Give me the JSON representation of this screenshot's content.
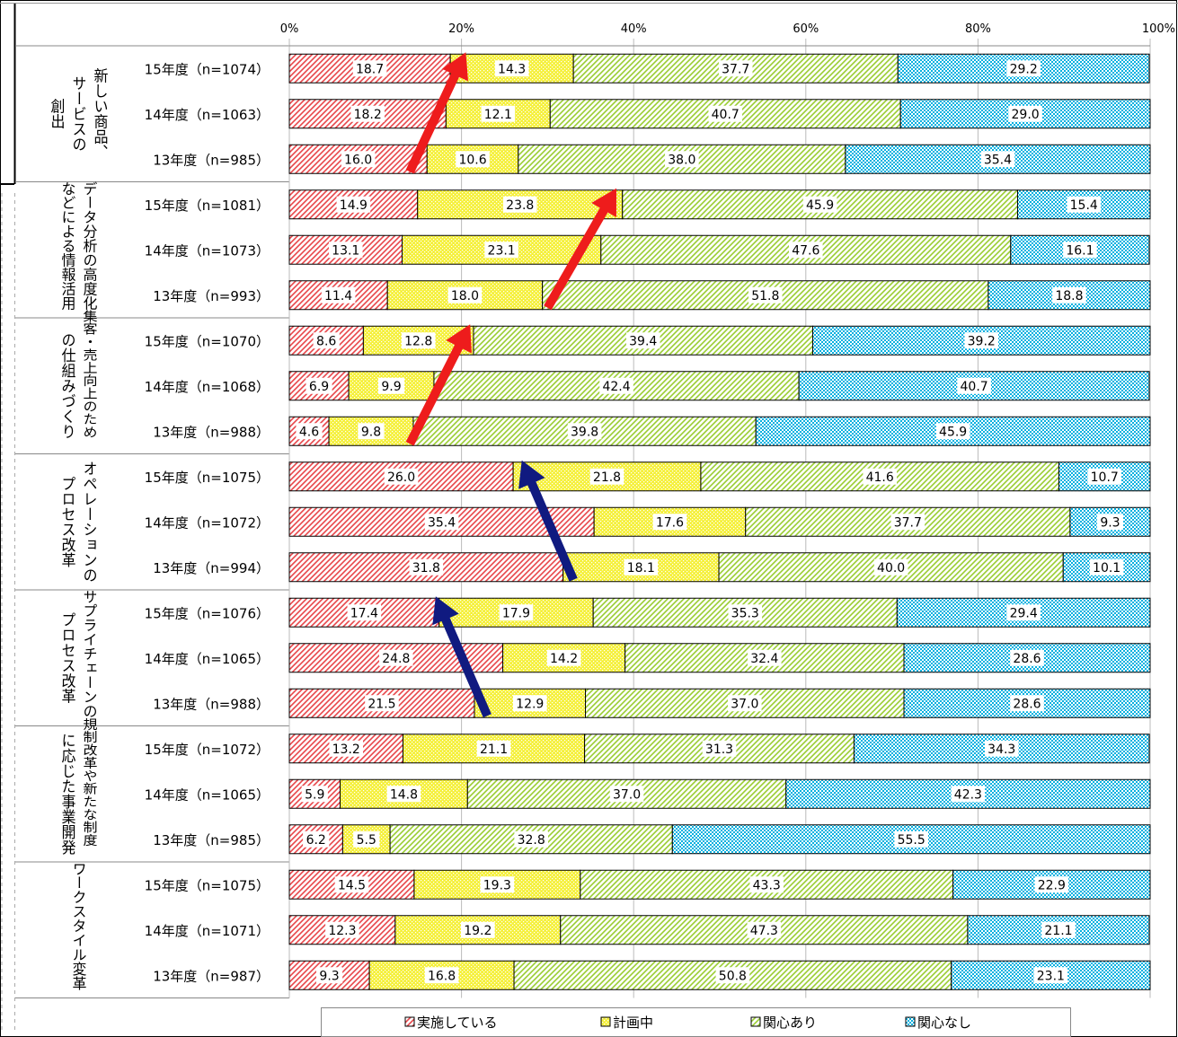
{
  "chart_data": {
    "type": "bar",
    "orientation": "horizontal-stacked-100",
    "x_ticks": [
      "0%",
      "20%",
      "40%",
      "60%",
      "80%",
      "100%"
    ],
    "xlim": [
      0,
      100
    ],
    "grid": true,
    "legend_position": "bottom",
    "series": [
      {
        "name": "実施している",
        "color": "#e8464a",
        "pattern": "diagonal"
      },
      {
        "name": "計画中",
        "color": "#f5f03c",
        "pattern": "dots"
      },
      {
        "name": "関心あり",
        "color": "#9acd32",
        "pattern": "diagonal"
      },
      {
        "name": "関心なし",
        "color": "#00b0e0",
        "pattern": "checker"
      }
    ],
    "groups": [
      {
        "label": [
          "新しい商品、",
          "サービスの",
          "創出"
        ],
        "rows": [
          {
            "label": "15年度（n=1074）",
            "values": [
              18.7,
              14.3,
              37.7,
              29.2
            ]
          },
          {
            "label": "14年度（n=1063）",
            "values": [
              18.2,
              12.1,
              40.7,
              29.0
            ]
          },
          {
            "label": "13年度（n=985）",
            "values": [
              16.0,
              10.6,
              38.0,
              35.4
            ]
          }
        ]
      },
      {
        "label": [
          "データ分析の高度化",
          "などによる情報活用"
        ],
        "rows": [
          {
            "label": "15年度（n=1081）",
            "values": [
              14.9,
              23.8,
              45.9,
              15.4
            ]
          },
          {
            "label": "14年度（n=1073）",
            "values": [
              13.1,
              23.1,
              47.6,
              16.1
            ]
          },
          {
            "label": "13年度（n=993）",
            "values": [
              11.4,
              18.0,
              51.8,
              18.8
            ]
          }
        ]
      },
      {
        "label": [
          "集客・売上向上のため",
          "の仕組みづくり"
        ],
        "rows": [
          {
            "label": "15年度（n=1070）",
            "values": [
              8.6,
              12.8,
              39.4,
              39.2
            ]
          },
          {
            "label": "14年度（n=1068）",
            "values": [
              6.9,
              9.9,
              42.4,
              40.7
            ]
          },
          {
            "label": "13年度（n=988）",
            "values": [
              4.6,
              9.8,
              39.8,
              45.9
            ]
          }
        ]
      },
      {
        "label": [
          "オペレーションの",
          "プロセス改革"
        ],
        "rows": [
          {
            "label": "15年度（n=1075）",
            "values": [
              26.0,
              21.8,
              41.6,
              10.7
            ]
          },
          {
            "label": "14年度（n=1072）",
            "values": [
              35.4,
              17.6,
              37.7,
              9.3
            ]
          },
          {
            "label": "13年度（n=994）",
            "values": [
              31.8,
              18.1,
              40.0,
              10.1
            ]
          }
        ]
      },
      {
        "label": [
          "サプライチェーンの",
          "プロセス改革"
        ],
        "rows": [
          {
            "label": "15年度（n=1076）",
            "values": [
              17.4,
              17.9,
              35.3,
              29.4
            ]
          },
          {
            "label": "14年度（n=1065）",
            "values": [
              24.8,
              14.2,
              32.4,
              28.6
            ]
          },
          {
            "label": "13年度（n=988）",
            "values": [
              21.5,
              12.9,
              37.0,
              28.6
            ]
          }
        ]
      },
      {
        "label": [
          "規制改革や新たな制度",
          "に応じた事業開発"
        ],
        "rows": [
          {
            "label": "15年度（n=1072）",
            "values": [
              13.2,
              21.1,
              31.3,
              34.3
            ]
          },
          {
            "label": "14年度（n=1065）",
            "values": [
              5.9,
              14.8,
              37.0,
              42.3
            ]
          },
          {
            "label": "13年度（n=985）",
            "values": [
              6.2,
              5.5,
              32.8,
              55.5
            ]
          }
        ]
      },
      {
        "label": [
          "ワークスタイル変革"
        ],
        "rows": [
          {
            "label": "15年度（n=1075）",
            "values": [
              14.5,
              19.3,
              43.3,
              22.9
            ]
          },
          {
            "label": "14年度（n=1071）",
            "values": [
              12.3,
              19.2,
              47.3,
              21.1
            ]
          },
          {
            "label": "13年度（n=987）",
            "values": [
              9.3,
              16.8,
              50.8,
              23.1
            ]
          }
        ]
      }
    ],
    "annotations": [
      {
        "type": "arrow",
        "color": "#ee1c1c",
        "from": {
          "group": 0,
          "row": 2,
          "value": 14
        },
        "to": {
          "group": 0,
          "row": 0,
          "value": 20.5
        }
      },
      {
        "type": "arrow",
        "color": "#ee1c1c",
        "from": {
          "group": 1,
          "row": 2,
          "value": 30
        },
        "to": {
          "group": 1,
          "row": 0,
          "value": 38
        }
      },
      {
        "type": "arrow",
        "color": "#ee1c1c",
        "from": {
          "group": 2,
          "row": 2,
          "value": 14
        },
        "to": {
          "group": 2,
          "row": 0,
          "value": 21
        }
      },
      {
        "type": "arrow",
        "color": "#101a80",
        "from": {
          "group": 3,
          "row": 2,
          "value": 33
        },
        "to": {
          "group": 3,
          "row": 0,
          "value": 27
        }
      },
      {
        "type": "arrow",
        "color": "#101a80",
        "from": {
          "group": 4,
          "row": 2,
          "value": 23
        },
        "to": {
          "group": 4,
          "row": 0,
          "value": 17
        }
      }
    ]
  }
}
